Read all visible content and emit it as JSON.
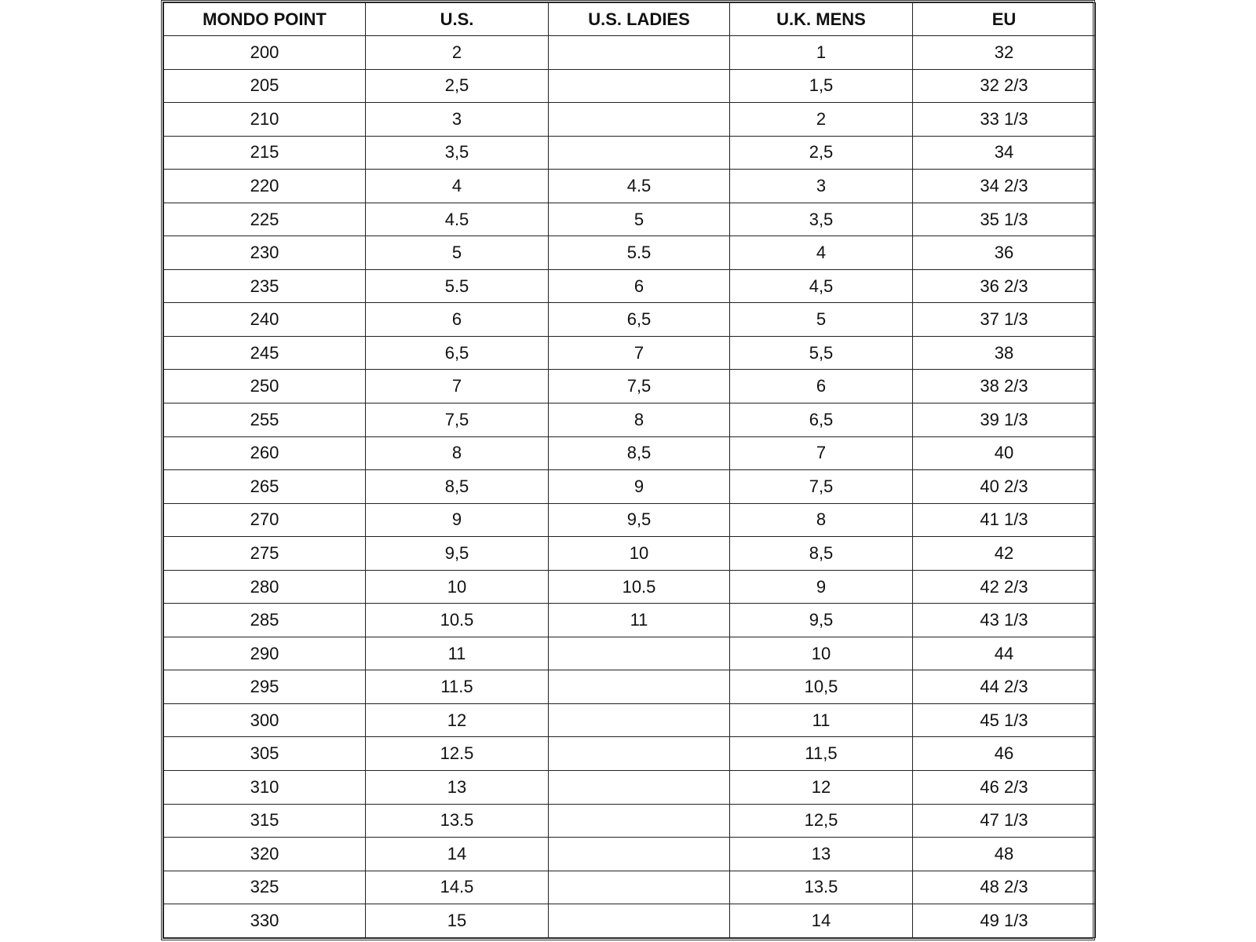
{
  "table": {
    "headers": [
      "MONDO POINT",
      "U.S.",
      "U.S. LADIES",
      "U.K. MENS",
      "EU"
    ],
    "rows": [
      [
        "200",
        "2",
        "",
        "1",
        "32"
      ],
      [
        "205",
        "2,5",
        "",
        "1,5",
        "32 2/3"
      ],
      [
        "210",
        "3",
        "",
        "2",
        "33 1/3"
      ],
      [
        "215",
        "3,5",
        "",
        "2,5",
        "34"
      ],
      [
        "220",
        "4",
        "4.5",
        "3",
        "34 2/3"
      ],
      [
        "225",
        "4.5",
        "5",
        "3,5",
        "35 1/3"
      ],
      [
        "230",
        "5",
        "5.5",
        "4",
        "36"
      ],
      [
        "235",
        "5.5",
        "6",
        "4,5",
        "36 2/3"
      ],
      [
        "240",
        "6",
        "6,5",
        "5",
        "37 1/3"
      ],
      [
        "245",
        "6,5",
        "7",
        "5,5",
        "38"
      ],
      [
        "250",
        "7",
        "7,5",
        "6",
        "38 2/3"
      ],
      [
        "255",
        "7,5",
        "8",
        "6,5",
        "39 1/3"
      ],
      [
        "260",
        "8",
        "8,5",
        "7",
        "40"
      ],
      [
        "265",
        "8,5",
        "9",
        "7,5",
        "40 2/3"
      ],
      [
        "270",
        "9",
        "9,5",
        "8",
        "41 1/3"
      ],
      [
        "275",
        "9,5",
        "10",
        "8,5",
        "42"
      ],
      [
        "280",
        "10",
        "10.5",
        "9",
        "42 2/3"
      ],
      [
        "285",
        "10.5",
        "11",
        "9,5",
        "43 1/3"
      ],
      [
        "290",
        "11",
        "",
        "10",
        "44"
      ],
      [
        "295",
        "11.5",
        "",
        "10,5",
        "44 2/3"
      ],
      [
        "300",
        "12",
        "",
        "11",
        "45 1/3"
      ],
      [
        "305",
        "12.5",
        "",
        "11,5",
        "46"
      ],
      [
        "310",
        "13",
        "",
        "12",
        "46 2/3"
      ],
      [
        "315",
        "13.5",
        "",
        "12,5",
        "47 1/3"
      ],
      [
        "320",
        "14",
        "",
        "13",
        "48"
      ],
      [
        "325",
        "14.5",
        "",
        "13.5",
        "48 2/3"
      ],
      [
        "330",
        "15",
        "",
        "14",
        "49 1/3"
      ]
    ]
  }
}
